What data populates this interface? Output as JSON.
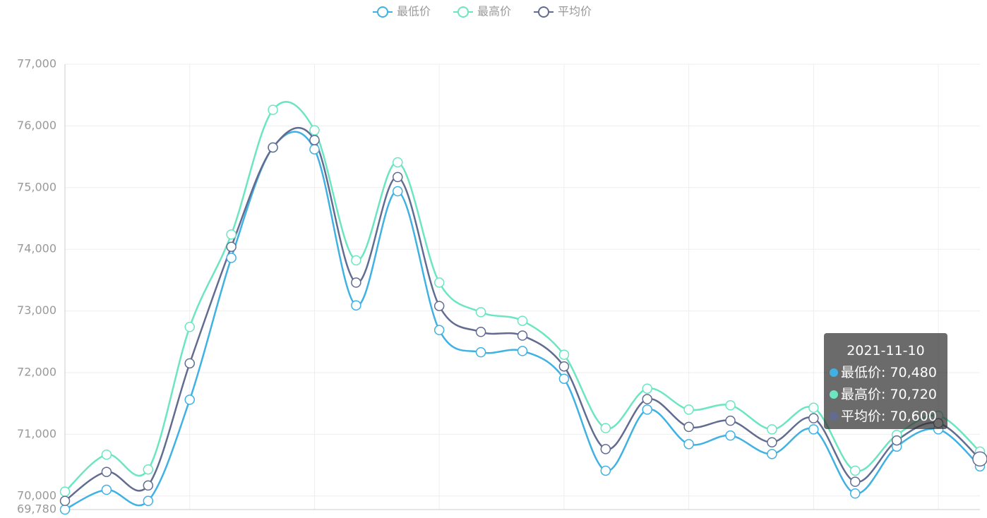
{
  "chart_data": {
    "type": "line",
    "categories": [
      null,
      null,
      null,
      null,
      null,
      null,
      null,
      null,
      null,
      null,
      null,
      null,
      null,
      null,
      null,
      null,
      null,
      null,
      null,
      null,
      null,
      null,
      "2021-11-10"
    ],
    "series": [
      {
        "name": "最低价",
        "color": "#3fb1e3",
        "values": [
          69780,
          70100,
          69920,
          71560,
          73860,
          75650,
          75620,
          73090,
          74940,
          72690,
          72330,
          72350,
          71900,
          70410,
          71400,
          70840,
          70980,
          70680,
          71080,
          70040,
          70800,
          71080,
          70480
        ],
        "value_labels": [
          null,
          null,
          null,
          null,
          null,
          null,
          null,
          null,
          null,
          null,
          null,
          null,
          null,
          null,
          null,
          null,
          null,
          null,
          null,
          null,
          null,
          null,
          "70,480"
        ]
      },
      {
        "name": "最高价",
        "color": "#6be6c1",
        "values": [
          70070,
          70670,
          70430,
          72740,
          74240,
          76260,
          75930,
          73820,
          75410,
          73460,
          72980,
          72840,
          72290,
          71100,
          71740,
          71400,
          71470,
          71080,
          71430,
          70410,
          70990,
          71300,
          70720
        ],
        "value_labels": [
          null,
          null,
          null,
          null,
          null,
          null,
          null,
          null,
          null,
          null,
          null,
          null,
          null,
          null,
          null,
          null,
          null,
          null,
          null,
          null,
          null,
          null,
          "70,720"
        ]
      },
      {
        "name": "平均价",
        "color": "#626c91",
        "values": [
          69920,
          70390,
          70170,
          72150,
          74040,
          75650,
          75770,
          73460,
          75170,
          73080,
          72660,
          72600,
          72100,
          70760,
          71570,
          71120,
          71220,
          70870,
          71260,
          70230,
          70900,
          71180,
          70600
        ],
        "value_labels": [
          null,
          null,
          null,
          null,
          null,
          null,
          null,
          null,
          null,
          null,
          null,
          null,
          null,
          null,
          null,
          null,
          null,
          null,
          null,
          null,
          null,
          null,
          "70,600"
        ]
      }
    ],
    "ylim": [
      69780,
      77000
    ],
    "yticks": [
      {
        "value": 69780,
        "label": "69,780"
      },
      {
        "value": 70000,
        "label": "70,000"
      },
      {
        "value": 71000,
        "label": "71,000"
      },
      {
        "value": 72000,
        "label": "72,000"
      },
      {
        "value": 73000,
        "label": "73,000"
      },
      {
        "value": 74000,
        "label": "74,000"
      },
      {
        "value": 75000,
        "label": "75,000"
      },
      {
        "value": 76000,
        "label": "76,000"
      },
      {
        "value": 77000,
        "label": "77,000"
      }
    ],
    "grid": true,
    "smooth": true,
    "legend": "top"
  }
}
